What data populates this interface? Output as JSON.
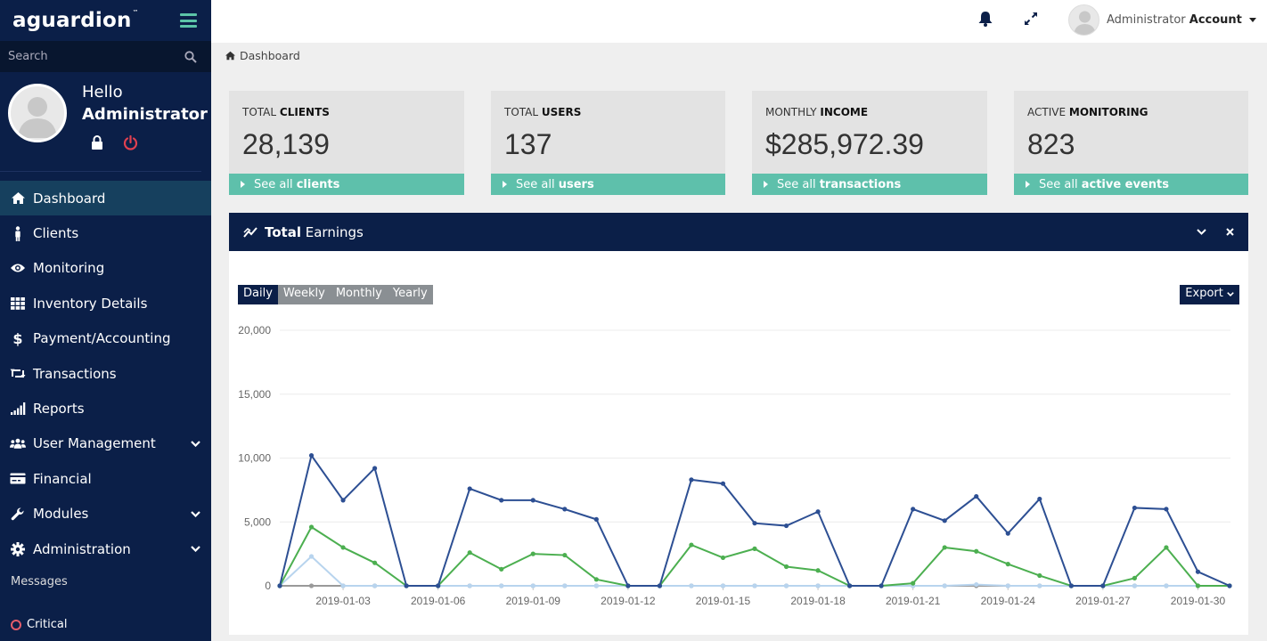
{
  "brand": {
    "name": "aguardion",
    "tm": "™"
  },
  "search": {
    "placeholder": "Search"
  },
  "profile": {
    "greeting": "Hello",
    "name": "Administrator"
  },
  "nav": [
    {
      "label": "Dashboard",
      "icon": "home-icon",
      "active": true
    },
    {
      "label": "Clients",
      "icon": "person-icon"
    },
    {
      "label": "Monitoring",
      "icon": "eye-icon"
    },
    {
      "label": "Inventory Details",
      "icon": "grid-icon"
    },
    {
      "label": "Payment/Accounting",
      "icon": "dollar-icon"
    },
    {
      "label": "Transactions",
      "icon": "retweet-icon"
    },
    {
      "label": "Reports",
      "icon": "signal-icon"
    },
    {
      "label": "User Management",
      "icon": "users-icon",
      "submenu": true
    },
    {
      "label": "Financial",
      "icon": "card-icon"
    },
    {
      "label": "Modules",
      "icon": "wrench-icon",
      "submenu": true
    },
    {
      "label": "Administration",
      "icon": "cog-icon",
      "submenu": true
    }
  ],
  "messages": {
    "heading": "Messages",
    "critical": "Critical"
  },
  "topbar": {
    "account_prefix": "Administrator",
    "account_bold": "Account"
  },
  "breadcrumb": {
    "label": "Dashboard"
  },
  "cards": [
    {
      "title_prefix": "TOTAL",
      "title_bold": "CLIENTS",
      "value": "28,139",
      "link_prefix": "See all",
      "link_bold": "clients"
    },
    {
      "title_prefix": "TOTAL",
      "title_bold": "USERS",
      "value": "137",
      "link_prefix": "See all",
      "link_bold": "users"
    },
    {
      "title_prefix": "MONTHLY",
      "title_bold": "INCOME",
      "value": "$285,972.39",
      "link_prefix": "See all",
      "link_bold": "transactions"
    },
    {
      "title_prefix": "ACTIVE",
      "title_bold": "MONITORING",
      "value": "823",
      "link_prefix": "See all",
      "link_bold": "active events"
    }
  ],
  "panel": {
    "title_bold": "Total",
    "title_rest": "Earnings"
  },
  "range_buttons": [
    "Daily",
    "Weekly",
    "Monthly",
    "Yearly"
  ],
  "range_selected": "Daily",
  "export_label": "Export",
  "colors": {
    "navy": "#0b1f48",
    "teal": "#5ec0ab",
    "series_blue": "#2d4f93",
    "series_green": "#4caf50",
    "series_light": "#b8d4ee",
    "series_gray": "#999999"
  },
  "chart_data": {
    "type": "line",
    "ylim": [
      0,
      20000
    ],
    "yticks": [
      "20,000",
      "15,000",
      "10,000",
      "5,000",
      "0"
    ],
    "ytick_values": [
      20000,
      15000,
      10000,
      5000,
      0
    ],
    "x": [
      "2019-01-01",
      "2019-01-02",
      "2019-01-03",
      "2019-01-04",
      "2019-01-05",
      "2019-01-06",
      "2019-01-07",
      "2019-01-08",
      "2019-01-09",
      "2019-01-10",
      "2019-01-11",
      "2019-01-12",
      "2019-01-13",
      "2019-01-14",
      "2019-01-15",
      "2019-01-16",
      "2019-01-17",
      "2019-01-18",
      "2019-01-19",
      "2019-01-20",
      "2019-01-21",
      "2019-01-22",
      "2019-01-23",
      "2019-01-24",
      "2019-01-25",
      "2019-01-26",
      "2019-01-27",
      "2019-01-28",
      "2019-01-29",
      "2019-01-30",
      "2019-01-31"
    ],
    "xtick_labels": [
      "2019-01-03",
      "2019-01-06",
      "2019-01-09",
      "2019-01-12",
      "2019-01-15",
      "2019-01-18",
      "2019-01-21",
      "2019-01-24",
      "2019-01-27",
      "2019-01-30"
    ],
    "grid": true,
    "series": [
      {
        "color": "#2d4f93",
        "values": [
          0,
          10200,
          6700,
          9200,
          0,
          0,
          7600,
          6700,
          6700,
          6000,
          5200,
          0,
          0,
          8300,
          8000,
          4900,
          4700,
          5800,
          0,
          0,
          6000,
          5100,
          7000,
          4100,
          6800,
          0,
          0,
          6100,
          6000,
          1100,
          0
        ]
      },
      {
        "color": "#4caf50",
        "values": [
          0,
          4600,
          3000,
          1800,
          0,
          0,
          2600,
          1300,
          2500,
          2400,
          500,
          0,
          0,
          3200,
          2200,
          2900,
          1500,
          1200,
          0,
          0,
          200,
          3000,
          2700,
          1700,
          800,
          0,
          0,
          600,
          3000,
          0,
          0
        ]
      },
      {
        "color": "#b8d4ee",
        "values": [
          0,
          2300,
          0,
          0,
          0,
          0,
          0,
          0,
          0,
          0,
          0,
          0,
          0,
          0,
          0,
          0,
          0,
          0,
          0,
          0,
          0,
          0,
          100,
          0,
          0,
          0,
          0,
          0,
          0,
          0,
          0
        ]
      },
      {
        "color": "#999999",
        "values": [
          0,
          0,
          0,
          0,
          0,
          0,
          0,
          0,
          0,
          0,
          0,
          0,
          0,
          0,
          0,
          0,
          0,
          0,
          0,
          0,
          0,
          0,
          0,
          0,
          0,
          0,
          0,
          0,
          0,
          0,
          0
        ]
      }
    ]
  }
}
